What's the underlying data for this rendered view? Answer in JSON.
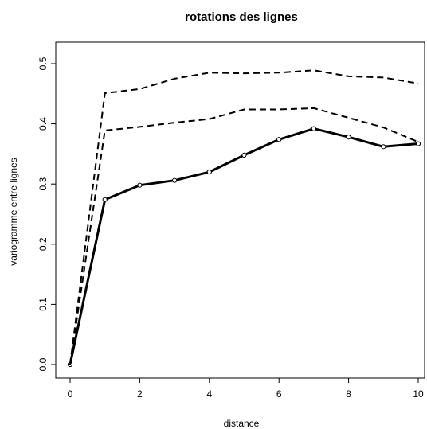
{
  "chart_data": {
    "type": "line",
    "title": "rotations des lignes",
    "xlabel": "distance",
    "ylabel": "variogramme entre lignes",
    "xlim": [
      0,
      10
    ],
    "ylim": [
      0,
      0.5
    ],
    "xticks": [
      "0",
      "2",
      "4",
      "6",
      "8",
      "10"
    ],
    "yticks": [
      "0.0",
      "0.1",
      "0.2",
      "0.3",
      "0.4",
      "0.5"
    ],
    "grid": false,
    "legend": "none",
    "x": [
      0,
      1,
      2,
      3,
      4,
      5,
      6,
      7,
      8,
      9,
      10
    ],
    "series": [
      {
        "style": "solid-with-points",
        "color": "#000000",
        "values": [
          0.0,
          0.274,
          0.298,
          0.306,
          0.32,
          0.348,
          0.374,
          0.392,
          0.378,
          0.362,
          0.367
        ]
      },
      {
        "style": "dashed",
        "color": "#000000",
        "values": [
          0.0,
          0.451,
          0.458,
          0.475,
          0.485,
          0.484,
          0.485,
          0.489,
          0.479,
          0.477,
          0.467
        ]
      },
      {
        "style": "dashed",
        "color": "#000000",
        "values": [
          0.0,
          0.389,
          0.395,
          0.402,
          0.408,
          0.424,
          0.424,
          0.426,
          0.41,
          0.394,
          0.37
        ]
      }
    ]
  }
}
